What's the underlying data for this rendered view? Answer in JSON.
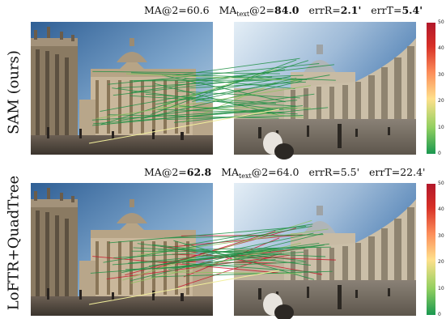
{
  "rows": [
    {
      "label": "SAM (ours)",
      "metrics": {
        "ma2": "60.6",
        "ma_text_main": "MA",
        "ma_text_sub": "text",
        "ma_text_rest": "@2=",
        "ma_text_val": "84.0",
        "errR": "2.1'",
        "errT": "5.4'",
        "bold": [
          "ma_text",
          "errR",
          "errT"
        ]
      }
    },
    {
      "label": "LoFTR+QuadTree",
      "metrics": {
        "ma2": "62.8",
        "ma_text_main": "MA",
        "ma_text_sub": "text",
        "ma_text_rest": "@2=",
        "ma_text_val": "64.0",
        "errR": "5.5'",
        "errT": "22.4'",
        "bold": [
          "ma2"
        ]
      }
    }
  ],
  "labels": {
    "ma2_prefix": "MA@2=",
    "errR_prefix": "errR=",
    "errT_prefix": "errT="
  },
  "colorbar": {
    "ticks": [
      "50",
      "40",
      "30",
      "20",
      "10",
      "0"
    ],
    "colors": [
      "#1a9850",
      "#91cf60",
      "#fee08b",
      "#fc8d59",
      "#d73027",
      "#b2182b"
    ]
  }
}
